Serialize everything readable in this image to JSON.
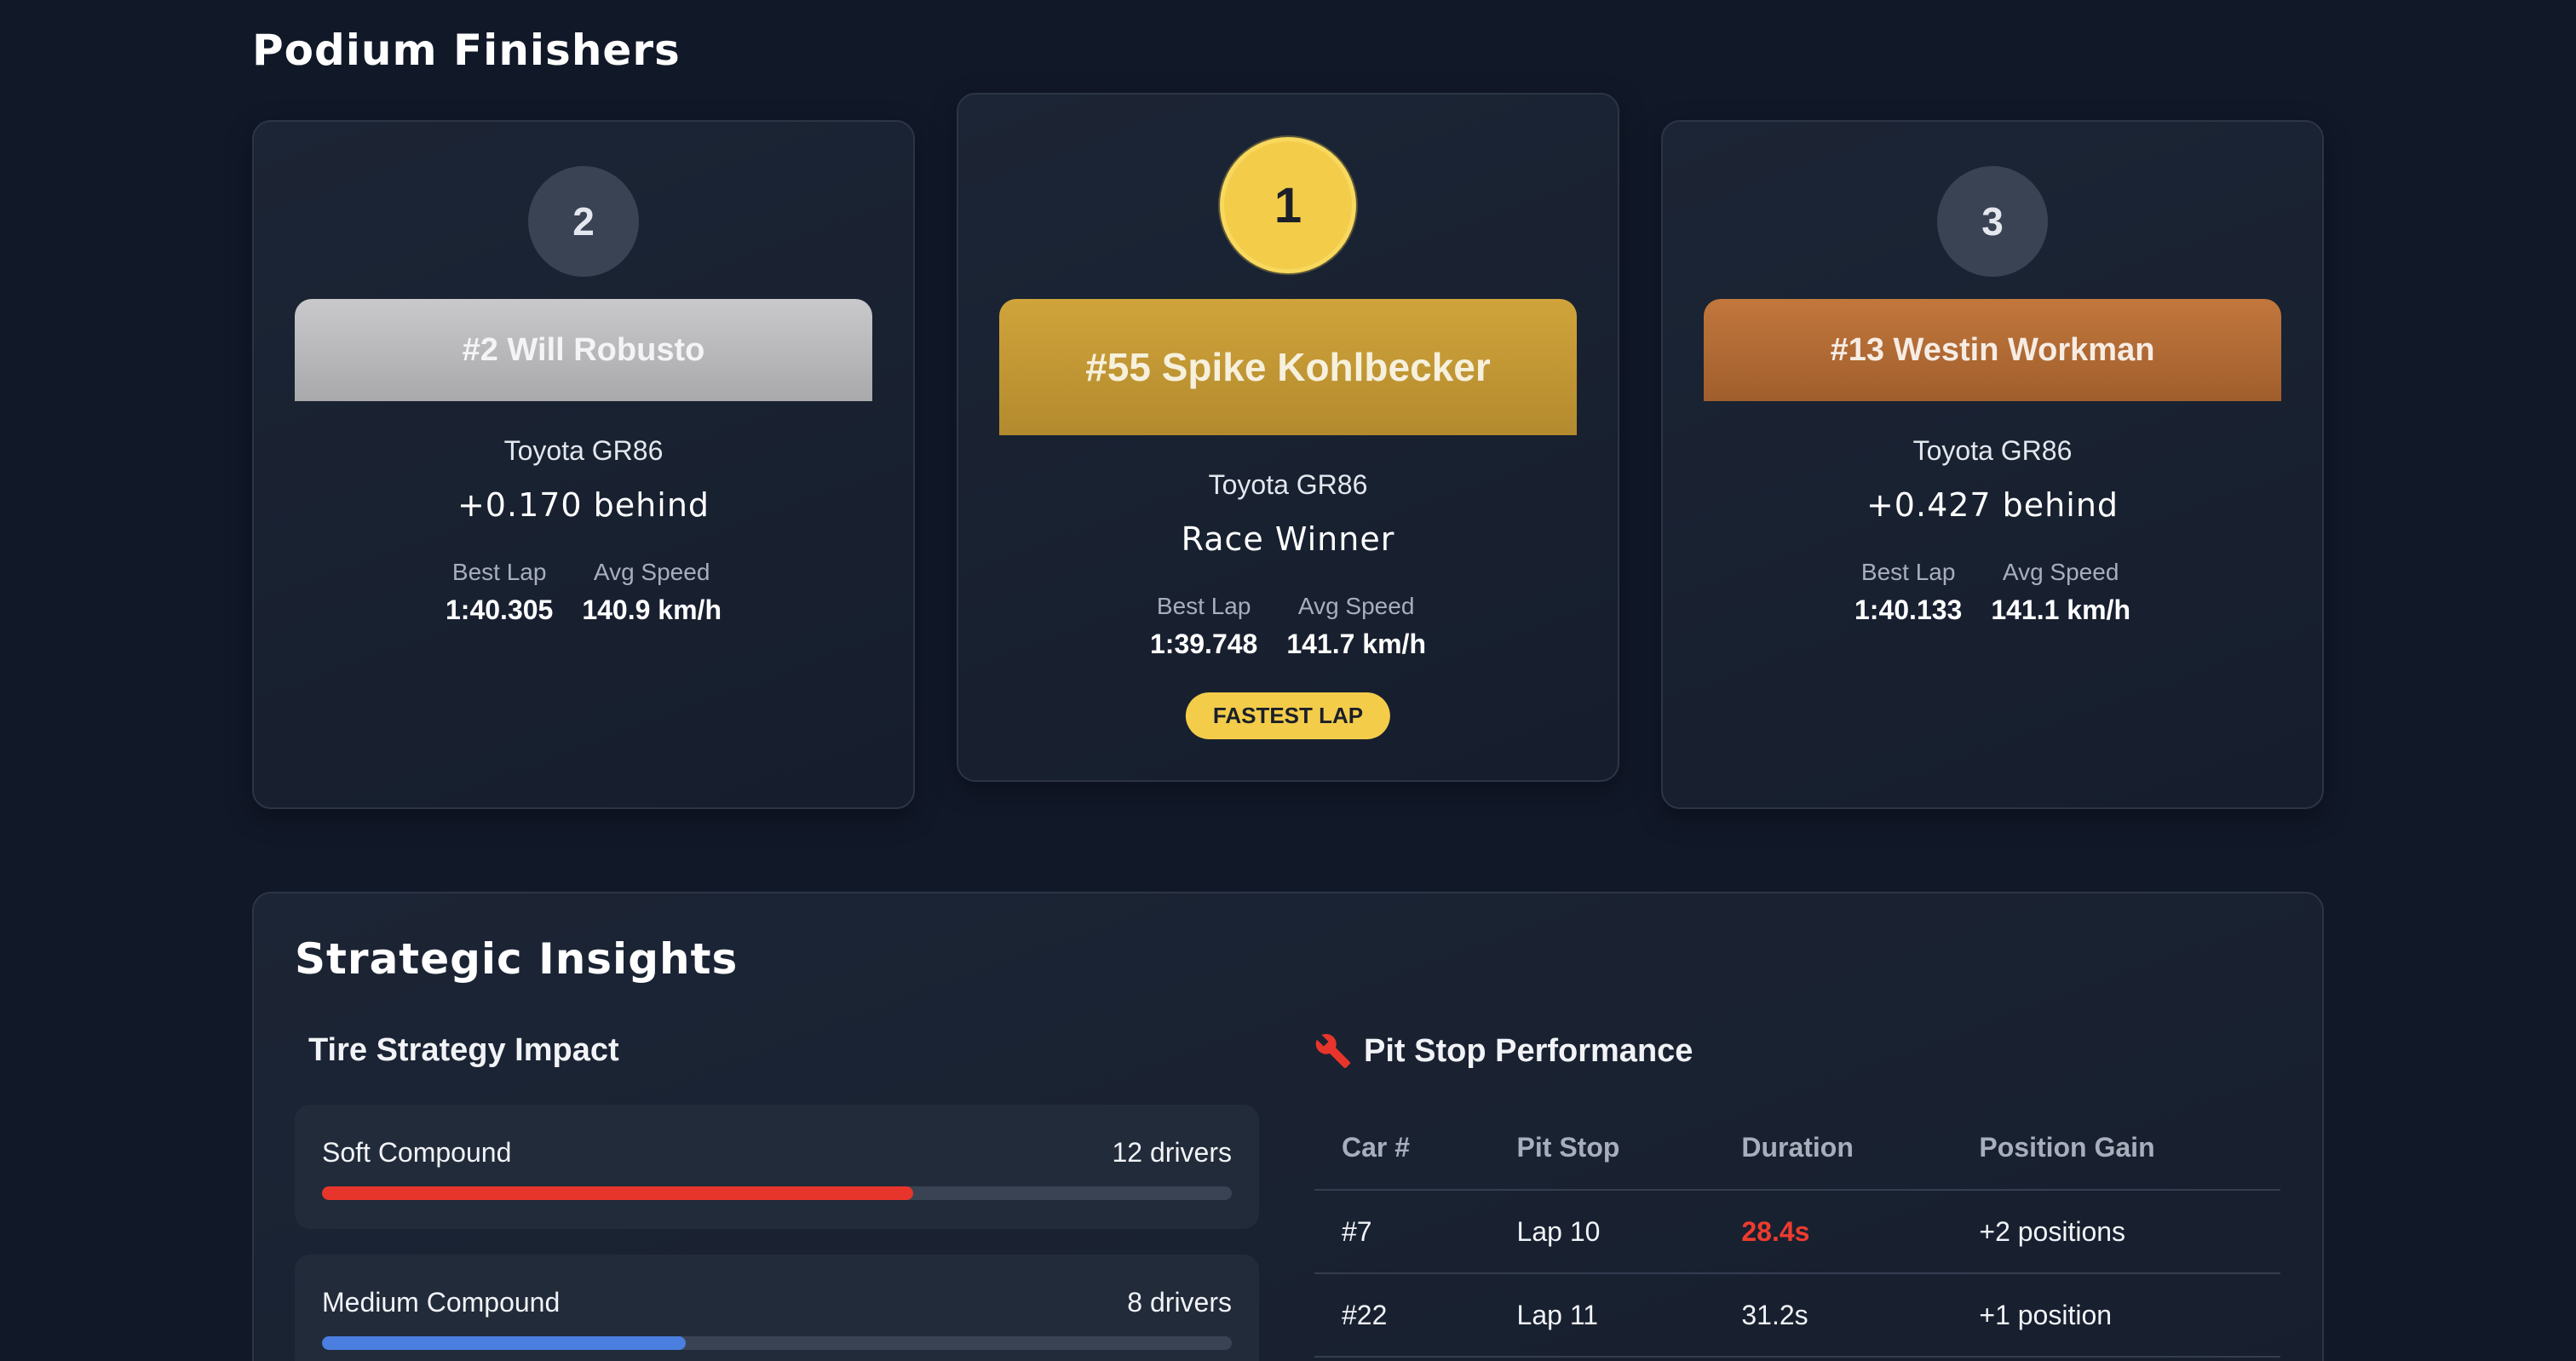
{
  "podium": {
    "title": "Podium Finishers",
    "finishers": [
      {
        "position": "2",
        "name": "#2 Will Robusto",
        "car": "Toyota GR86",
        "gap": "+0.170 behind",
        "best_lap_label": "Best Lap",
        "best_lap": "1:40.305",
        "avg_speed_label": "Avg Speed",
        "avg_speed": "140.9 km/h"
      },
      {
        "position": "1",
        "name": "#55 Spike Kohlbecker",
        "car": "Toyota GR86",
        "gap": "Race Winner",
        "best_lap_label": "Best Lap",
        "best_lap": "1:39.748",
        "avg_speed_label": "Avg Speed",
        "avg_speed": "141.7 km/h",
        "badge": "FASTEST LAP"
      },
      {
        "position": "3",
        "name": "#13 Westin Workman",
        "car": "Toyota GR86",
        "gap": "+0.427 behind",
        "best_lap_label": "Best Lap",
        "best_lap": "1:40.133",
        "avg_speed_label": "Avg Speed",
        "avg_speed": "141.1 km/h"
      }
    ]
  },
  "insights": {
    "title": "Strategic Insights",
    "tire": {
      "title": "Tire Strategy Impact",
      "compounds": [
        {
          "label": "Soft Compound",
          "count": "12 drivers",
          "fill_fraction": 0.65,
          "color": "#e8352b"
        },
        {
          "label": "Medium Compound",
          "count": "8 drivers",
          "fill_fraction": 0.4,
          "color": "#4a7fe0"
        }
      ]
    },
    "pit": {
      "title": "Pit Stop Performance",
      "icon": "wrench-icon",
      "icon_color": "#e8352b",
      "headers": [
        "Car #",
        "Pit Stop",
        "Duration",
        "Position Gain"
      ],
      "rows": [
        {
          "car": "#7",
          "stop": "Lap 10",
          "duration": "28.4s",
          "gain": "+2 positions",
          "slow": true
        },
        {
          "car": "#22",
          "stop": "Lap 11",
          "duration": "31.2s",
          "gain": "+1 position",
          "slow": false
        }
      ]
    }
  }
}
